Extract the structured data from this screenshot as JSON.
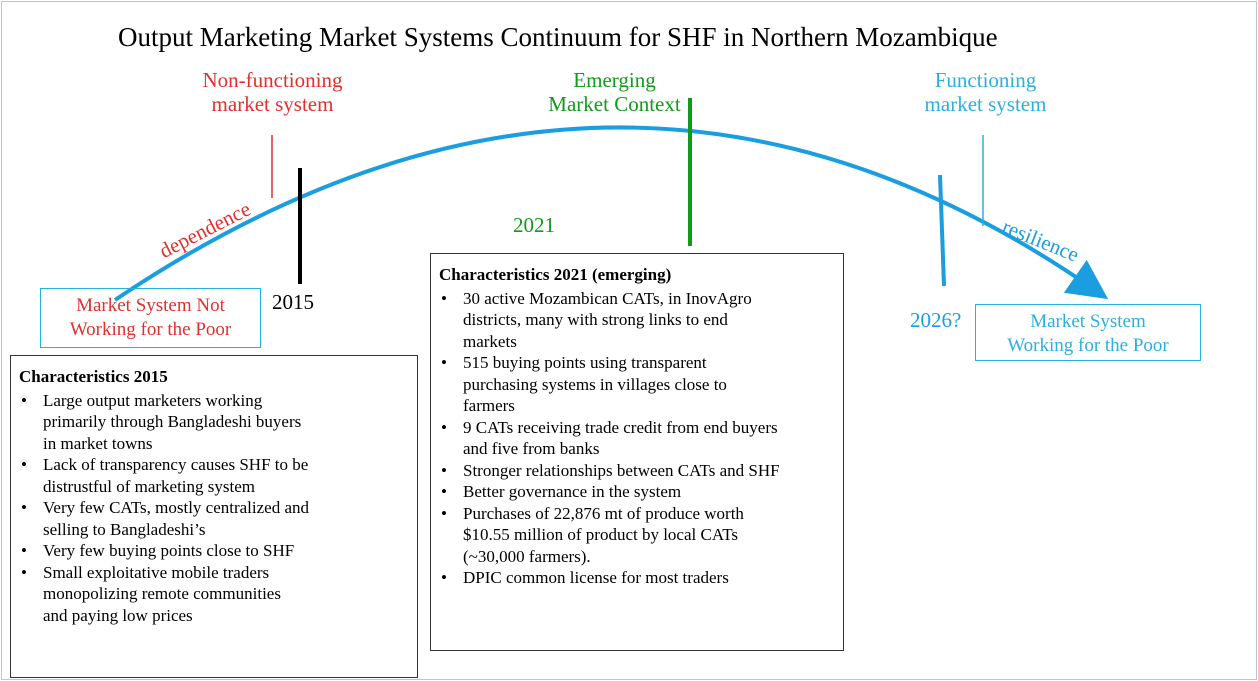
{
  "title": "Output Marketing Market Systems Continuum for SHF in Northern Mozambique",
  "stages": {
    "non_functioning": [
      "Non-functioning",
      "market system"
    ],
    "emerging": [
      "Emerging",
      "Market Context"
    ],
    "functioning": [
      "Functioning",
      "market system"
    ]
  },
  "curve_labels": {
    "left": "dependence",
    "right": "resilience"
  },
  "years": {
    "y2015": "2015",
    "y2021": "2021",
    "y2026": "2026?"
  },
  "end_boxes": {
    "left": [
      "Market System Not",
      "Working for the Poor"
    ],
    "right": [
      "Market System",
      "Working for the Poor"
    ]
  },
  "characteristics_2015": {
    "heading": "Characteristics 2015",
    "bullets": [
      [
        "Large output marketers working",
        "primarily through Bangladeshi buyers",
        "in market towns"
      ],
      [
        "Lack of transparency causes SHF to be",
        "distrustful of marketing system"
      ],
      [
        "Very few CATs, mostly centralized and",
        "selling to Bangladeshi’s"
      ],
      [
        "Very few buying points close to SHF"
      ],
      [
        "Small exploitative mobile traders",
        "monopolizing remote communities",
        "and paying low prices"
      ]
    ]
  },
  "characteristics_2021": {
    "heading": "Characteristics 2021 (emerging)",
    "bullets": [
      [
        "30 active Mozambican CATs, in InovAgro",
        "districts, many with strong links to end",
        "markets"
      ],
      [
        "515 buying points using transparent",
        "purchasing systems in villages close to",
        "farmers"
      ],
      [
        "9 CATs receiving trade credit from end buyers",
        "and five from banks"
      ],
      [
        "Stronger relationships between CATs and SHF"
      ],
      [
        "Better governance in the system"
      ],
      [
        "Purchases of 22,876 mt of produce worth",
        "$10.55 million of product by local CATs",
        "(~30,000 farmers)."
      ],
      [
        "DPIC common license for most traders"
      ]
    ]
  }
}
